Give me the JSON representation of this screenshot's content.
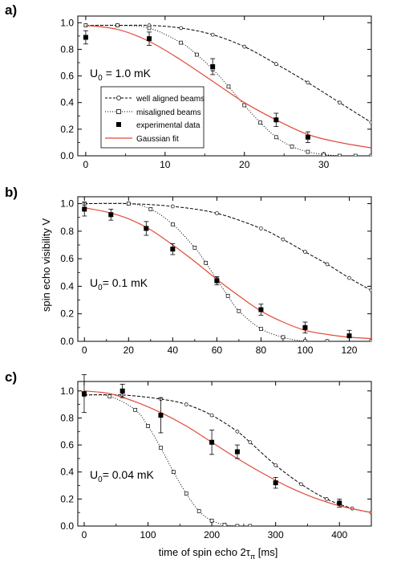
{
  "figure": {
    "ylabel": "spin echo visibility V",
    "xlabel": "time of spin echo 2τ",
    "xlabel_sub": "π",
    "xlabel_unit": " [ms]",
    "colors": {
      "fit": "#e04a3a",
      "axis": "#000000",
      "markers": "#000000"
    }
  },
  "legend": {
    "entries": [
      {
        "label": "well aligned beams",
        "style": "dashed-circle"
      },
      {
        "label": "misaligned beams",
        "style": "dotted-square"
      },
      {
        "label": "experimental data",
        "style": "filled-square"
      },
      {
        "label": "Gaussian fit",
        "style": "red-line"
      }
    ]
  },
  "chart_data": [
    {
      "type": "line",
      "panel_label": "a)",
      "annotation": {
        "prefix": "U",
        "sub": "0",
        "suffix": " = 1.0 mK"
      },
      "xlim": [
        -1,
        36
      ],
      "ylim": [
        0,
        1.05
      ],
      "xticks": [
        0,
        10,
        20,
        30
      ],
      "xticklabels": [
        "0",
        "10",
        "20",
        "30"
      ],
      "yticks": [
        0,
        0.2,
        0.4,
        0.6,
        0.8,
        1.0
      ],
      "yticklabels": [
        "0.0",
        "0.2",
        "0.4",
        "0.6",
        "0.8",
        "1.0"
      ],
      "series": [
        {
          "name": "well aligned beams",
          "x": [
            0,
            4,
            8,
            12,
            16,
            20,
            24,
            28,
            32,
            36
          ],
          "y": [
            0.98,
            0.98,
            0.98,
            0.96,
            0.91,
            0.82,
            0.69,
            0.55,
            0.4,
            0.25
          ]
        },
        {
          "name": "misaligned beams",
          "x": [
            0,
            4,
            8,
            12,
            14,
            16,
            18,
            20,
            22,
            24,
            26,
            28,
            30,
            32,
            34,
            36
          ],
          "y": [
            0.98,
            0.98,
            0.96,
            0.85,
            0.76,
            0.65,
            0.52,
            0.38,
            0.25,
            0.14,
            0.07,
            0.03,
            0.01,
            0.0,
            0.0,
            0.0
          ]
        },
        {
          "name": "experimental data",
          "x": [
            0,
            8,
            16,
            24,
            28
          ],
          "y": [
            0.89,
            0.88,
            0.67,
            0.27,
            0.14
          ],
          "err": [
            0.05,
            0.05,
            0.06,
            0.05,
            0.04
          ]
        },
        {
          "name": "Gaussian fit",
          "x": [
            0,
            4,
            8,
            12,
            16,
            20,
            24,
            28,
            32,
            36
          ],
          "y": [
            0.98,
            0.95,
            0.86,
            0.72,
            0.56,
            0.4,
            0.27,
            0.16,
            0.1,
            0.06
          ]
        }
      ]
    },
    {
      "type": "line",
      "panel_label": "b)",
      "annotation": {
        "prefix": "U",
        "sub": "0",
        "suffix": "= 0.1 mK"
      },
      "xlim": [
        -3,
        130
      ],
      "ylim": [
        0,
        1.05
      ],
      "xticks": [
        0,
        20,
        40,
        60,
        80,
        100,
        120
      ],
      "xticklabels": [
        "0",
        "20",
        "40",
        "60",
        "80",
        "100",
        "120"
      ],
      "yticks": [
        0,
        0.2,
        0.4,
        0.6,
        0.8,
        1.0
      ],
      "yticklabels": [
        "0.0",
        "0.2",
        "0.4",
        "0.6",
        "0.8",
        "1.0"
      ],
      "series": [
        {
          "name": "well aligned beams",
          "x": [
            0,
            20,
            40,
            60,
            80,
            90,
            100,
            110,
            120,
            130
          ],
          "y": [
            1.0,
            1.0,
            0.98,
            0.93,
            0.82,
            0.74,
            0.65,
            0.56,
            0.46,
            0.37
          ]
        },
        {
          "name": "misaligned beams",
          "x": [
            0,
            20,
            30,
            40,
            50,
            55,
            60,
            65,
            70,
            80,
            90,
            100,
            110,
            130
          ],
          "y": [
            1.0,
            1.0,
            0.96,
            0.85,
            0.68,
            0.57,
            0.45,
            0.33,
            0.22,
            0.09,
            0.03,
            0.0,
            0.0,
            0.0
          ]
        },
        {
          "name": "experimental data",
          "x": [
            0,
            12,
            28,
            40,
            60,
            80,
            100,
            120
          ],
          "y": [
            0.96,
            0.92,
            0.82,
            0.67,
            0.44,
            0.23,
            0.1,
            0.04
          ],
          "err": [
            0.05,
            0.04,
            0.05,
            0.04,
            0.03,
            0.04,
            0.04,
            0.04
          ]
        },
        {
          "name": "Gaussian fit",
          "x": [
            0,
            10,
            20,
            30,
            40,
            50,
            60,
            70,
            80,
            90,
            100,
            110,
            120,
            130
          ],
          "y": [
            0.97,
            0.94,
            0.89,
            0.81,
            0.7,
            0.58,
            0.45,
            0.33,
            0.22,
            0.14,
            0.08,
            0.05,
            0.03,
            0.02
          ]
        }
      ]
    },
    {
      "type": "line",
      "panel_label": "c)",
      "annotation": {
        "prefix": "U",
        "sub": "0",
        "suffix": "= 0.04 mK"
      },
      "xlim": [
        -10,
        450
      ],
      "ylim": [
        0,
        1.07
      ],
      "xticks": [
        0,
        100,
        200,
        300,
        400
      ],
      "xticklabels": [
        "0",
        "100",
        "200",
        "300",
        "400"
      ],
      "yticks": [
        0,
        0.2,
        0.4,
        0.6,
        0.8,
        1.0
      ],
      "yticklabels": [
        "0.0",
        "0.2",
        "0.4",
        "0.6",
        "0.8",
        "1.0"
      ],
      "series": [
        {
          "name": "well aligned beams",
          "x": [
            0,
            60,
            120,
            160,
            200,
            240,
            260,
            300,
            340,
            380,
            420,
            450
          ],
          "y": [
            0.97,
            0.97,
            0.94,
            0.9,
            0.82,
            0.7,
            0.62,
            0.45,
            0.31,
            0.2,
            0.13,
            0.1
          ]
        },
        {
          "name": "misaligned beams",
          "x": [
            0,
            40,
            80,
            100,
            120,
            140,
            160,
            180,
            200,
            220,
            240,
            260
          ],
          "y": [
            0.97,
            0.96,
            0.86,
            0.74,
            0.58,
            0.4,
            0.24,
            0.11,
            0.04,
            0.01,
            0.0,
            0.0
          ]
        },
        {
          "name": "experimental data",
          "x": [
            0,
            60,
            120,
            200,
            240,
            300,
            400
          ],
          "y": [
            0.98,
            1.0,
            0.82,
            0.62,
            0.55,
            0.32,
            0.17
          ],
          "err": [
            0.14,
            0.05,
            0.13,
            0.09,
            0.05,
            0.04,
            0.03
          ]
        },
        {
          "name": "Gaussian fit",
          "x": [
            0,
            40,
            80,
            120,
            160,
            200,
            240,
            280,
            320,
            360,
            400,
            450
          ],
          "y": [
            1.0,
            0.98,
            0.92,
            0.84,
            0.74,
            0.62,
            0.5,
            0.39,
            0.29,
            0.21,
            0.15,
            0.1
          ]
        }
      ]
    }
  ]
}
